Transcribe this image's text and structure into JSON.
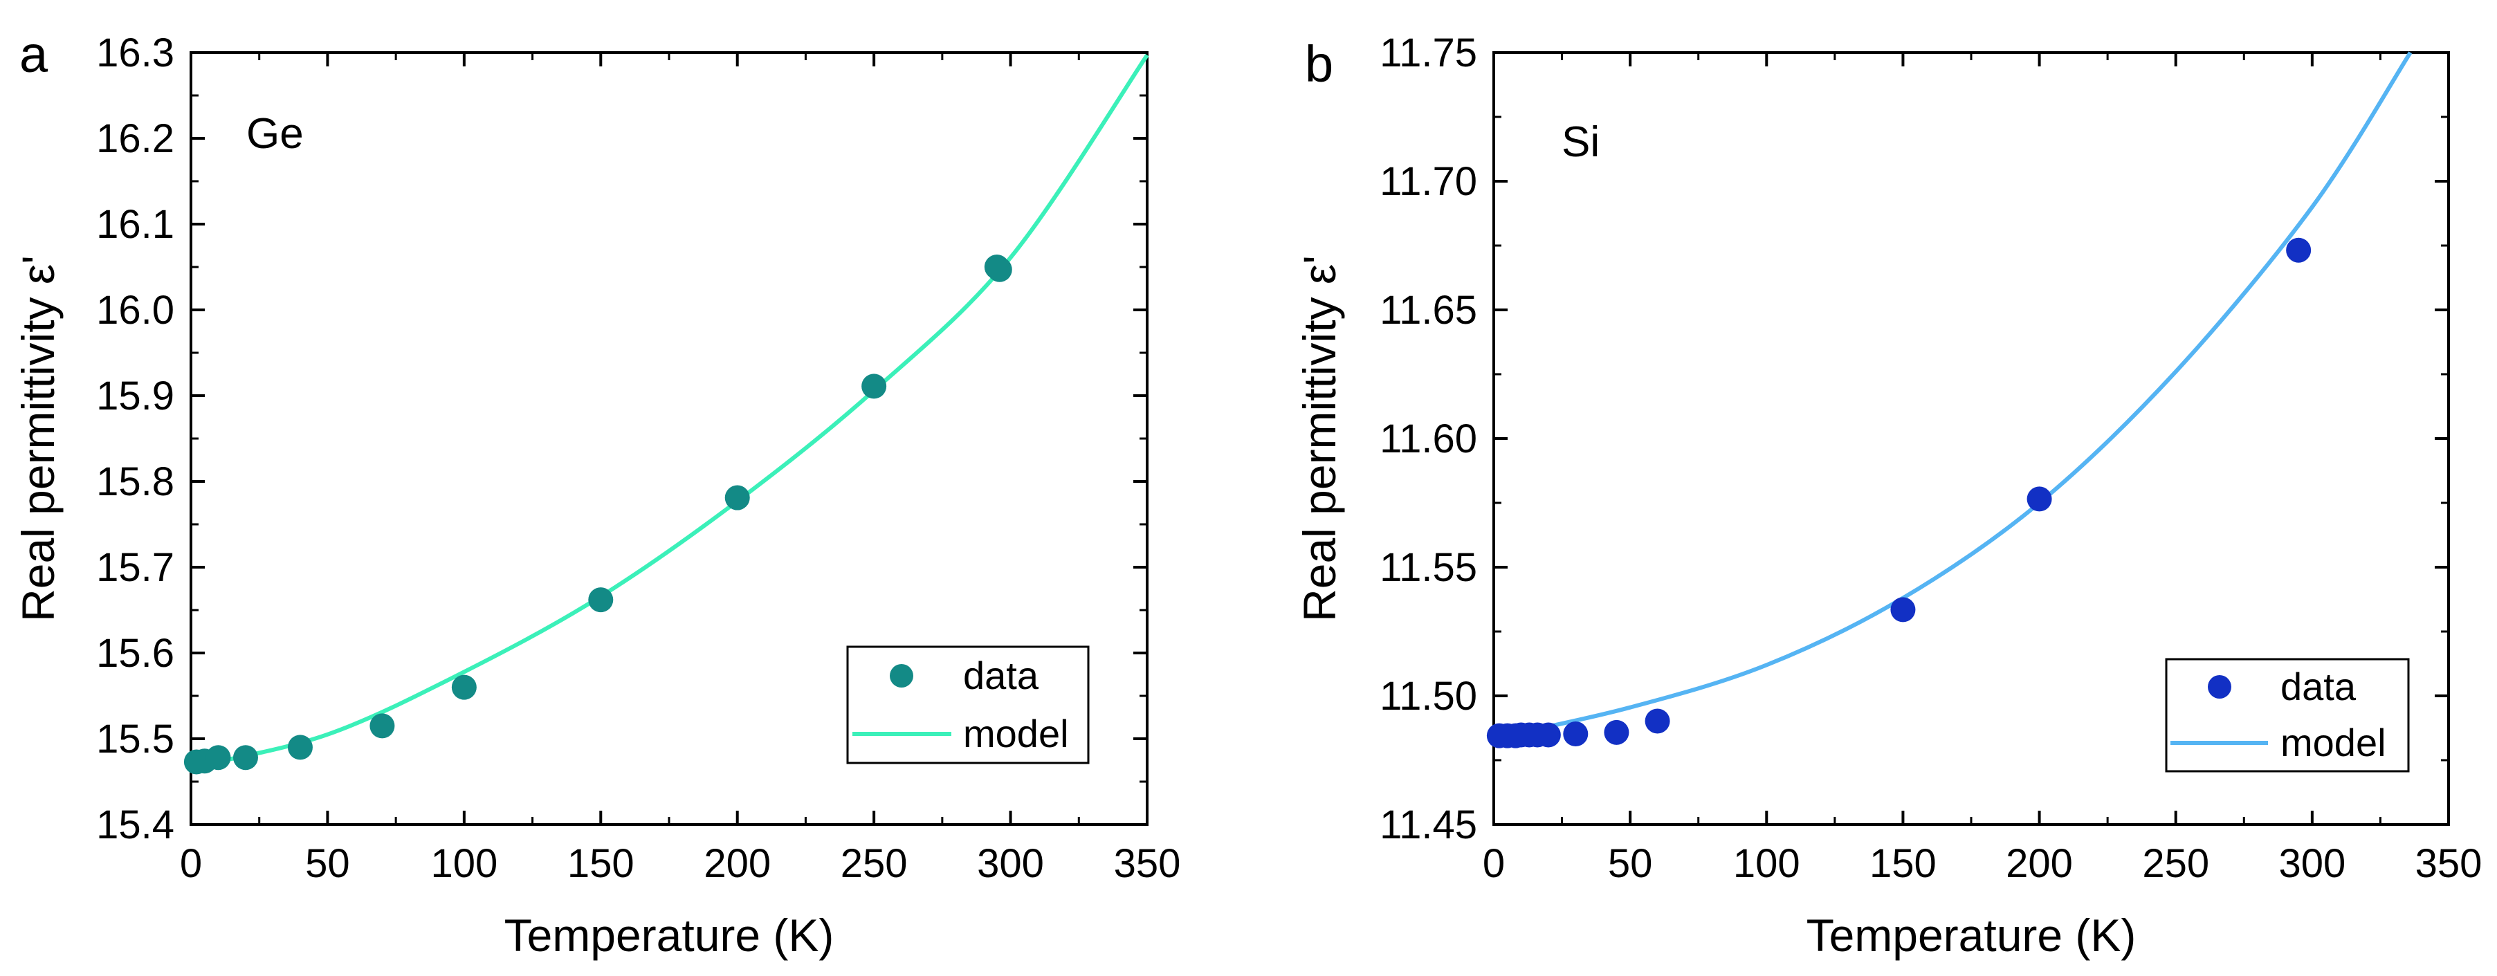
{
  "chart_data": [
    {
      "panel": "a",
      "type": "scatter",
      "label": "Ge",
      "xlabel": "Temperature (K)",
      "ylabel": "Real permittivity ε'",
      "xlim": [
        0,
        350
      ],
      "ylim": [
        15.4,
        16.3
      ],
      "xticks": [
        0,
        50,
        100,
        150,
        200,
        250,
        300,
        350
      ],
      "xtick_labels": [
        "0",
        "50",
        "100",
        "150",
        "200",
        "250",
        "300",
        "350"
      ],
      "yticks": [
        15.4,
        15.5,
        15.6,
        15.7,
        15.8,
        15.9,
        16.0,
        16.1,
        16.2,
        16.3
      ],
      "ytick_labels": [
        "15.4",
        "15.5",
        "15.6",
        "15.7",
        "15.8",
        "15.9",
        "16.0",
        "16.1",
        "16.2",
        "16.3"
      ],
      "legend": {
        "position": "bottom-right",
        "data_label": "data",
        "model_label": "model"
      },
      "series": [
        {
          "name": "data",
          "kind": "scatter",
          "color": "#138a86",
          "x": [
            2,
            5,
            10,
            20,
            40,
            70,
            100,
            150,
            200,
            250,
            295,
            296
          ],
          "y": [
            15.473,
            15.474,
            15.478,
            15.478,
            15.49,
            15.515,
            15.56,
            15.662,
            15.781,
            15.911,
            16.05,
            16.047
          ]
        },
        {
          "name": "model",
          "kind": "line",
          "color": "#3bf0b9",
          "x": [
            2,
            50,
            100,
            150,
            200,
            250,
            300,
            350
          ],
          "y": [
            15.468,
            15.505,
            15.578,
            15.666,
            15.777,
            15.906,
            16.061,
            16.297
          ]
        }
      ]
    },
    {
      "panel": "b",
      "type": "scatter",
      "label": "Si",
      "xlabel": "Temperature (K)",
      "ylabel": "Real permittivity ε'",
      "xlim": [
        0,
        350
      ],
      "ylim": [
        11.45,
        11.75
      ],
      "xticks": [
        0,
        50,
        100,
        150,
        200,
        250,
        300,
        350
      ],
      "xtick_labels": [
        "0",
        "50",
        "100",
        "150",
        "200",
        "250",
        "300",
        "350"
      ],
      "yticks": [
        11.45,
        11.5,
        11.55,
        11.6,
        11.65,
        11.7,
        11.75
      ],
      "ytick_labels": [
        "11.45",
        "11.50",
        "11.55",
        "11.60",
        "11.65",
        "11.70",
        "11.75"
      ],
      "legend": {
        "position": "bottom-right",
        "data_label": "data",
        "model_label": "model"
      },
      "series": [
        {
          "name": "data",
          "kind": "scatter",
          "color": "#1230c4",
          "x": [
            2,
            5,
            8,
            10,
            13,
            16,
            20,
            30,
            45,
            60,
            150,
            200,
            295
          ],
          "y": [
            11.4845,
            11.4845,
            11.4845,
            11.4848,
            11.4848,
            11.4848,
            11.4848,
            11.4852,
            11.4858,
            11.4902,
            11.5335,
            11.5765,
            11.6732
          ]
        },
        {
          "name": "model",
          "kind": "line",
          "color": "#55b4f3",
          "x": [
            2,
            50,
            100,
            150,
            200,
            250,
            300,
            336
          ],
          "y": [
            11.484,
            11.4955,
            11.512,
            11.538,
            11.575,
            11.626,
            11.69,
            11.75
          ]
        }
      ]
    }
  ]
}
